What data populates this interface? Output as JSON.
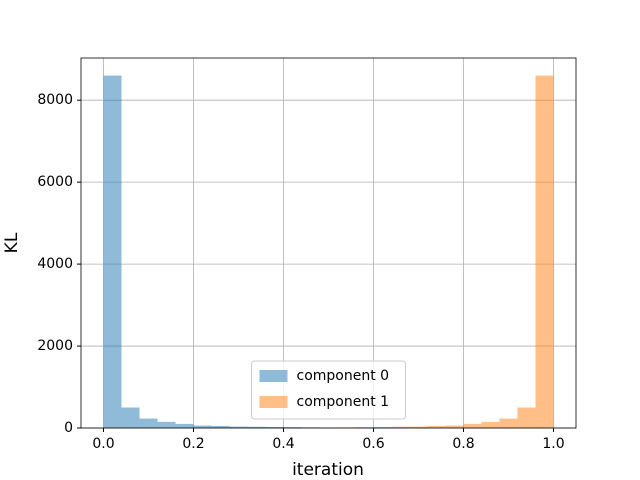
{
  "chart_data": {
    "type": "histogram",
    "x_label": "iteration",
    "y_label": "KL",
    "bins": [
      0,
      0.04,
      0.08,
      0.12,
      0.16,
      0.2,
      0.24,
      0.28,
      0.32,
      0.36,
      0.4,
      0.44,
      0.48,
      0.52,
      0.56,
      0.6,
      0.64,
      0.68,
      0.72,
      0.76,
      0.8,
      0.84,
      0.88,
      0.92,
      0.96,
      1.0
    ],
    "series": [
      {
        "name": "component 0",
        "color": "#1f77b4",
        "values": [
          8600,
          500,
          230,
          150,
          100,
          60,
          50,
          35,
          30,
          25,
          20,
          15,
          12,
          10,
          8,
          6,
          5,
          4,
          3,
          3,
          2,
          2,
          1,
          1,
          1
        ]
      },
      {
        "name": "component 1",
        "color": "#ff7f0e",
        "values": [
          1,
          1,
          1,
          2,
          2,
          3,
          3,
          4,
          5,
          6,
          8,
          10,
          12,
          15,
          20,
          25,
          30,
          35,
          50,
          60,
          100,
          150,
          230,
          500,
          8600
        ]
      }
    ],
    "opacity": 0.5,
    "xlim": [
      -0.05,
      1.05
    ],
    "ylim": [
      0,
      9030
    ],
    "xticks": [
      {
        "value": 0,
        "label": "0.0"
      },
      {
        "value": 0.2,
        "label": "0.2"
      },
      {
        "value": 0.4,
        "label": "0.4"
      },
      {
        "value": 0.6,
        "label": "0.6"
      },
      {
        "value": 0.8,
        "label": "0.8"
      },
      {
        "value": 1,
        "label": "1.0"
      }
    ],
    "yticks": [
      0,
      2000,
      4000,
      6000,
      8000
    ],
    "grid": true,
    "legend": "lower center"
  }
}
